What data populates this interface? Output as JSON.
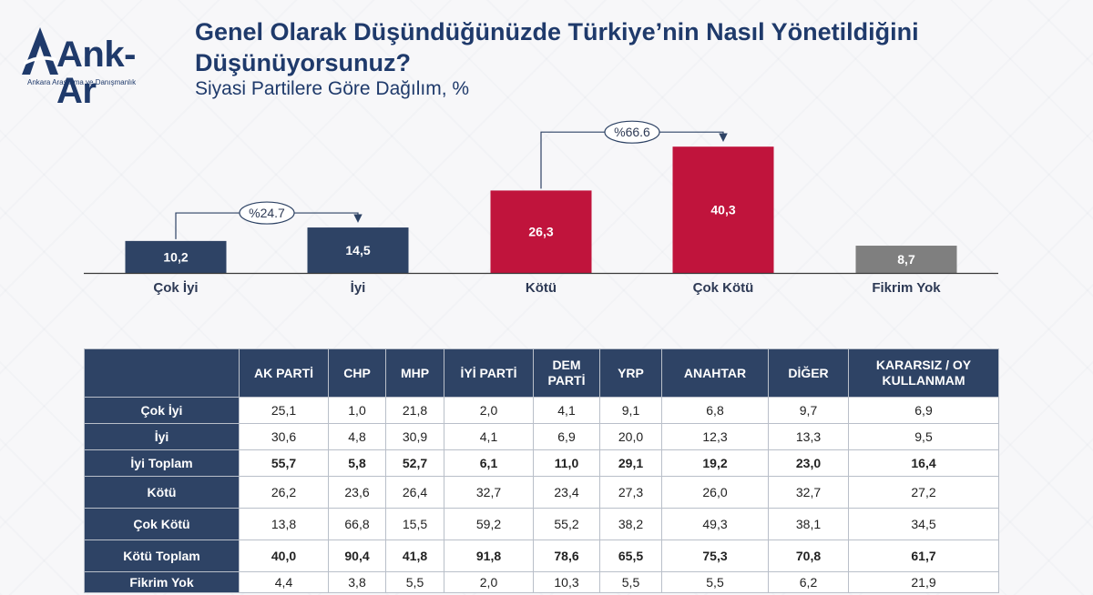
{
  "header": {
    "logo_text": "Ank-Ar",
    "logo_subtitle": "Ankara Araştırma ve Danışmanlık",
    "title": "Genel Olarak Düşündüğünüzde Türkiye’nin Nasıl Yönetildiğini Düşünüyorsunuz?",
    "subtitle": "Siyasi Partilere Göre Dağılım, %"
  },
  "colors": {
    "navy": "#2e4365",
    "red": "#c0143c",
    "gray": "#7f7f7f",
    "blue_total": "#6b8ac0",
    "title_blue": "#1f3a6b"
  },
  "chart_data": {
    "type": "bar",
    "categories": [
      "Çok İyi",
      "İyi",
      "Kötü",
      "Çok Kötü",
      "Fikrim Yok"
    ],
    "values": [
      10.2,
      14.5,
      26.3,
      40.3,
      8.7
    ],
    "value_labels": [
      "10,2",
      "14,5",
      "26,3",
      "40,3",
      "8,7"
    ],
    "bar_colors": [
      "#2e4365",
      "#2e4365",
      "#c0143c",
      "#c0143c",
      "#7f7f7f"
    ],
    "ylim": [
      0,
      45
    ],
    "annotations": [
      {
        "label": "%24.7",
        "from": 0,
        "to": 1
      },
      {
        "label": "%66.6",
        "from": 2,
        "to": 3
      }
    ],
    "title": "",
    "xlabel": "",
    "ylabel": ""
  },
  "table": {
    "columns": [
      "AK PARTİ",
      "CHP",
      "MHP",
      "İYİ PARTİ",
      "DEM PARTİ",
      "YRP",
      "ANAHTAR",
      "DİĞER",
      "KARARSIZ / OY KULLANMAM"
    ],
    "rows": [
      {
        "label": "Çok İyi",
        "style": "normal",
        "values": [
          "25,1",
          "1,0",
          "21,8",
          "2,0",
          "4,1",
          "9,1",
          "6,8",
          "9,7",
          "6,9"
        ]
      },
      {
        "label": "İyi",
        "style": "normal",
        "values": [
          "30,6",
          "4,8",
          "30,9",
          "4,1",
          "6,9",
          "20,0",
          "12,3",
          "13,3",
          "9,5"
        ]
      },
      {
        "label": "İyi Toplam",
        "style": "blue-total",
        "values": [
          "55,7",
          "5,8",
          "52,7",
          "6,1",
          "11,0",
          "29,1",
          "19,2",
          "23,0",
          "16,4"
        ]
      },
      {
        "label": "Kötü",
        "style": "tall",
        "values": [
          "26,2",
          "23,6",
          "26,4",
          "32,7",
          "23,4",
          "27,3",
          "26,0",
          "32,7",
          "27,2"
        ]
      },
      {
        "label": "Çok Kötü",
        "style": "tall",
        "values": [
          "13,8",
          "66,8",
          "15,5",
          "59,2",
          "55,2",
          "38,2",
          "49,3",
          "38,1",
          "34,5"
        ]
      },
      {
        "label": "Kötü Toplam",
        "style": "red-total",
        "values": [
          "40,0",
          "90,4",
          "41,8",
          "91,8",
          "78,6",
          "65,5",
          "75,3",
          "70,8",
          "61,7"
        ]
      },
      {
        "label": "Fikrim Yok",
        "style": "short",
        "values": [
          "4,4",
          "3,8",
          "5,5",
          "2,0",
          "10,3",
          "5,5",
          "5,5",
          "6,2",
          "21,9"
        ]
      }
    ]
  }
}
